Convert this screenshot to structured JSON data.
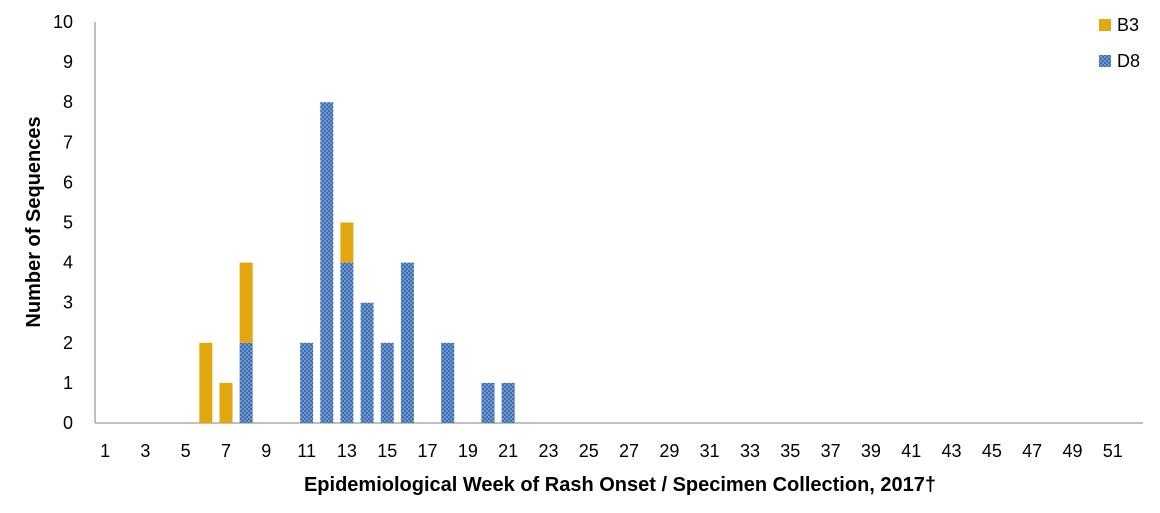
{
  "chart_data": {
    "type": "bar",
    "stacked": true,
    "title": "",
    "xlabel": "Epidemiological Week of Rash Onset / Specimen Collection, 2017†",
    "ylabel": "Number of Sequences",
    "ylim": [
      0,
      10
    ],
    "yticks": [
      "0",
      "1",
      "2",
      "3",
      "4",
      "5",
      "6",
      "7",
      "8",
      "9",
      "10"
    ],
    "categories": [
      1,
      2,
      3,
      4,
      5,
      6,
      7,
      8,
      9,
      10,
      11,
      12,
      13,
      14,
      15,
      16,
      17,
      18,
      19,
      20,
      21,
      22,
      23,
      24,
      25,
      26,
      27,
      28,
      29,
      30,
      31,
      32,
      33,
      34,
      35,
      36,
      37,
      38,
      39,
      40,
      41,
      42,
      43,
      44,
      45,
      46,
      47,
      48,
      49,
      50,
      51,
      52
    ],
    "xtick_labels": [
      "1",
      "3",
      "5",
      "7",
      "9",
      "11",
      "13",
      "15",
      "17",
      "19",
      "21",
      "23",
      "25",
      "27",
      "29",
      "31",
      "33",
      "35",
      "37",
      "39",
      "41",
      "43",
      "45",
      "47",
      "49",
      "51"
    ],
    "series": [
      {
        "name": "D8",
        "color": "#3b6db2",
        "pattern": "dotted",
        "values": [
          0,
          0,
          0,
          0,
          0,
          0,
          0,
          2,
          0,
          0,
          2,
          8,
          4,
          3,
          2,
          4,
          0,
          2,
          0,
          1,
          1,
          0,
          0,
          0,
          0,
          0,
          0,
          0,
          0,
          0,
          0,
          0,
          0,
          0,
          0,
          0,
          0,
          0,
          0,
          0,
          0,
          0,
          0,
          0,
          0,
          0,
          0,
          0,
          0,
          0,
          0,
          0
        ]
      },
      {
        "name": "B3",
        "color": "#e3a70f",
        "pattern": "solid",
        "values": [
          0,
          0,
          0,
          0,
          0,
          2,
          1,
          2,
          0,
          0,
          0,
          0,
          1,
          0,
          0,
          0,
          0,
          0,
          0,
          0,
          0,
          0,
          0,
          0,
          0,
          0,
          0,
          0,
          0,
          0,
          0,
          0,
          0,
          0,
          0,
          0,
          0,
          0,
          0,
          0,
          0,
          0,
          0,
          0,
          0,
          0,
          0,
          0,
          0,
          0,
          0,
          0
        ]
      }
    ],
    "legend": {
      "placement": "top-right",
      "entries": [
        "B3",
        "D8"
      ]
    },
    "grid": false
  }
}
